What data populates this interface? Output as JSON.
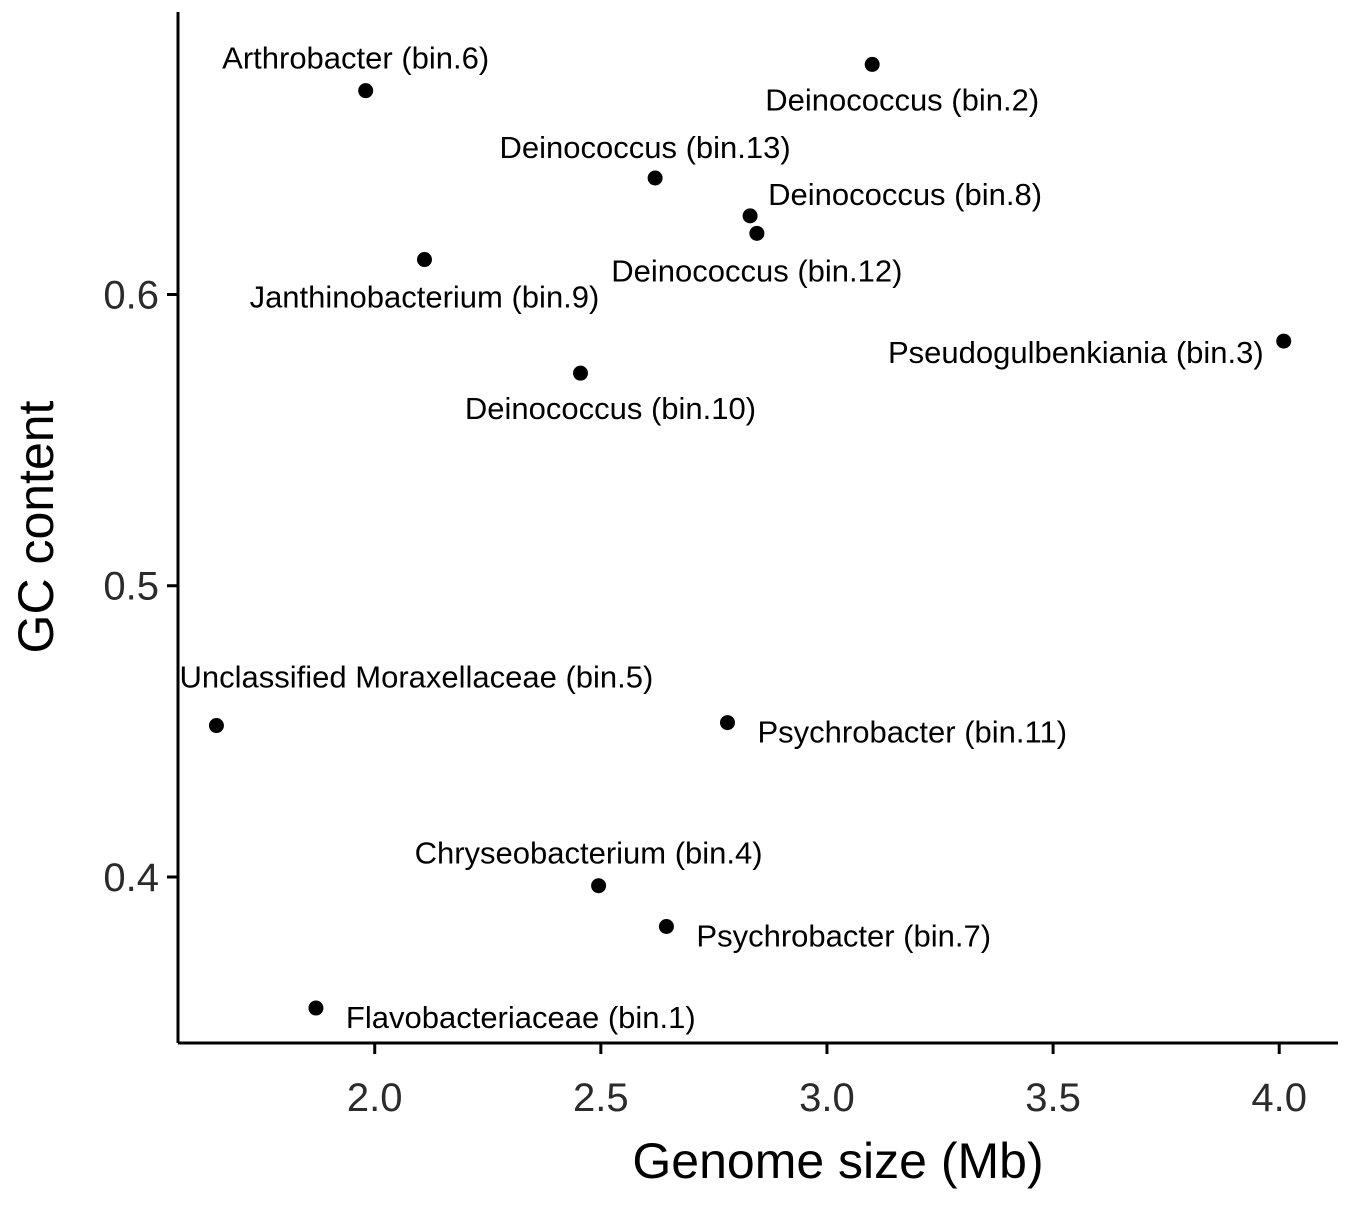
{
  "chart_data": {
    "type": "scatter",
    "title": "",
    "xlabel": "Genome size (Mb)",
    "ylabel": "GC content",
    "xlim": [
      1.565,
      4.13
    ],
    "ylim": [
      0.343,
      0.697
    ],
    "xticks": [
      2.0,
      2.5,
      3.0,
      3.5,
      4.0
    ],
    "xtick_labels": [
      "2.0",
      "2.5",
      "3.0",
      "3.5",
      "4.0"
    ],
    "yticks": [
      0.4,
      0.5,
      0.6
    ],
    "ytick_labels": [
      "0.4",
      "0.5",
      "0.6"
    ],
    "grid": false,
    "legend": "none",
    "point_color": "#000000",
    "points": [
      {
        "label": "Deinococcus  (bin.2)",
        "x": 3.1,
        "y": 0.679,
        "label_pos": "below-right"
      },
      {
        "label": "Arthrobacter (bin.6)",
        "x": 1.98,
        "y": 0.67,
        "label_pos": "above"
      },
      {
        "label": "Deinococcus (bin.13)",
        "x": 2.62,
        "y": 0.64,
        "label_pos": "above-left"
      },
      {
        "label": "Deinococcus (bin.8)",
        "x": 2.83,
        "y": 0.627,
        "label_pos": "right-up"
      },
      {
        "label": "Deinococcus (bin.12)",
        "x": 2.845,
        "y": 0.621,
        "label_pos": "below"
      },
      {
        "label": "Janthinobacterium (bin.9)",
        "x": 2.11,
        "y": 0.612,
        "label_pos": "below"
      },
      {
        "label": "Pseudogulbenkiania (bin.3)",
        "x": 4.01,
        "y": 0.584,
        "label_pos": "left"
      },
      {
        "label": "Deinococcus (bin.10)",
        "x": 2.455,
        "y": 0.573,
        "label_pos": "below-right"
      },
      {
        "label": "Unclassified Moraxellaceae (bin.5)",
        "x": 1.65,
        "y": 0.452,
        "label_pos": "above-right"
      },
      {
        "label": "Psychrobacter (bin.11)",
        "x": 2.78,
        "y": 0.453,
        "label_pos": "right"
      },
      {
        "label": "Chryseobacterium (bin.4)",
        "x": 2.495,
        "y": 0.397,
        "label_pos": "above"
      },
      {
        "label": "Psychrobacter (bin.7)",
        "x": 2.645,
        "y": 0.383,
        "label_pos": "right"
      },
      {
        "label": "Flavobacteriaceae (bin.1)",
        "x": 1.87,
        "y": 0.355,
        "label_pos": "right"
      }
    ]
  }
}
